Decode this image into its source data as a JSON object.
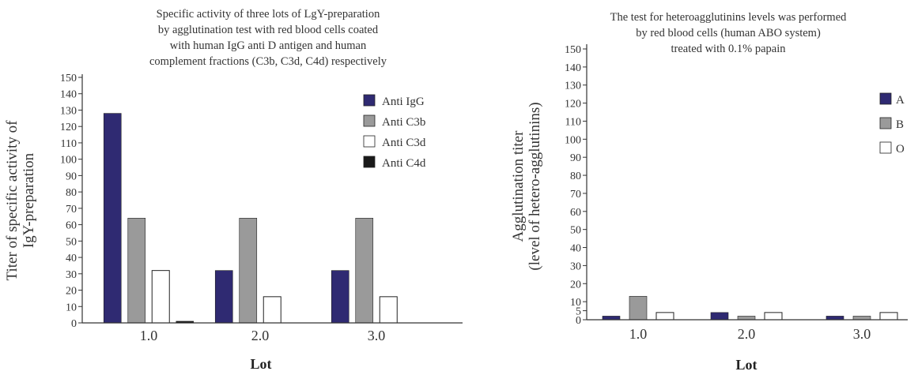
{
  "chart_data": [
    {
      "type": "bar",
      "title": [
        "Specific activity of three lots of LgY-preparation",
        "by agglutination test with red blood cells coated",
        "with human IgG anti D antigen and human",
        "complement fractions (C3b, C3d, C4d) respectively"
      ],
      "xlabel": "Lot",
      "ylabel": [
        "Titer of specific activity of",
        "IgY-preparation"
      ],
      "categories": [
        "1.0",
        "2.0",
        "3.0"
      ],
      "ylim": [
        0,
        150
      ],
      "yticks": [
        0,
        10,
        20,
        30,
        40,
        50,
        60,
        70,
        80,
        90,
        100,
        110,
        120,
        130,
        140,
        150
      ],
      "legend_position": "top-right",
      "series": [
        {
          "name": "Anti IgG",
          "color": "#2f2a72",
          "values": [
            128,
            32,
            32
          ]
        },
        {
          "name": "Anti C3b",
          "color": "#9a9a9a",
          "values": [
            64,
            64,
            64
          ]
        },
        {
          "name": "Anti C3d",
          "color": "#ffffff",
          "values": [
            32,
            16,
            16
          ]
        },
        {
          "name": "Anti C4d",
          "color": "#1a1a1a",
          "values": [
            1,
            0,
            0
          ]
        }
      ]
    },
    {
      "type": "bar",
      "title": [
        "The test for heteroagglutinins levels was performed",
        "by red blood cells (human ABO system)",
        "treated with 0.1% papain"
      ],
      "xlabel": "Lot",
      "ylabel": [
        "Agglutination titer",
        "(level of hetero-agglutinins)"
      ],
      "categories": [
        "1.0",
        "2.0",
        "3.0"
      ],
      "ylim": [
        0,
        150
      ],
      "yticks": [
        0,
        5,
        10,
        20,
        30,
        40,
        50,
        60,
        70,
        80,
        90,
        100,
        110,
        120,
        130,
        140,
        150
      ],
      "legend_position": "top-right",
      "series": [
        {
          "name": "A",
          "color": "#2f2a72",
          "values": [
            2,
            4,
            2
          ]
        },
        {
          "name": "B",
          "color": "#9a9a9a",
          "values": [
            13,
            2,
            2
          ]
        },
        {
          "name": "O",
          "color": "#ffffff",
          "values": [
            4,
            4,
            4
          ]
        }
      ]
    }
  ]
}
